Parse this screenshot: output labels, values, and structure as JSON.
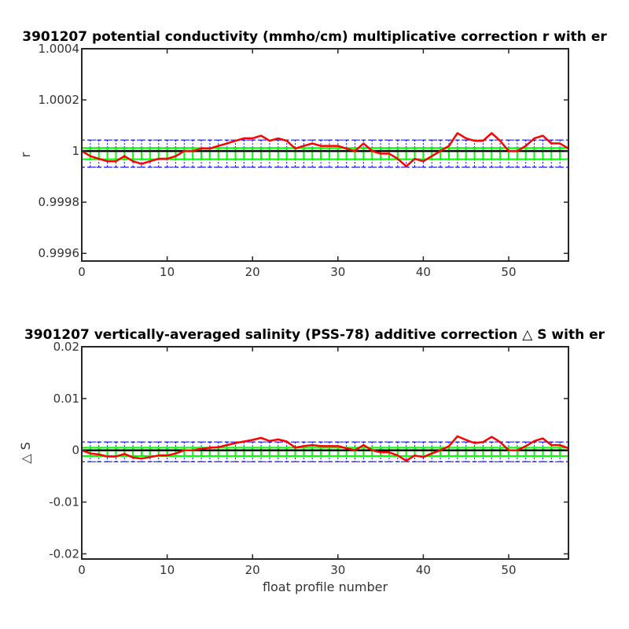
{
  "chart_data": [
    {
      "type": "line",
      "title": "3901207 potential conductivity (mmho/cm) multiplicative correction r with er",
      "xlabel": "",
      "ylabel": "r",
      "xlim": [
        0,
        57
      ],
      "ylim": [
        0.99957,
        1.0004
      ],
      "xticks": [
        0,
        10,
        20,
        30,
        40,
        50
      ],
      "xtick_labels": [
        "0",
        "10",
        "20",
        "30",
        "40",
        "50"
      ],
      "yticks": [
        0.9996,
        0.9998,
        1,
        1.0002,
        1.0004
      ],
      "ytick_labels": [
        "0.9996",
        "0.9998",
        "1",
        "1.0002",
        "1.0004"
      ],
      "grid": false,
      "x": [
        0,
        1,
        2,
        3,
        4,
        5,
        6,
        7,
        8,
        9,
        10,
        11,
        12,
        13,
        14,
        15,
        16,
        17,
        18,
        19,
        20,
        21,
        22,
        23,
        24,
        25,
        26,
        27,
        28,
        29,
        30,
        31,
        32,
        33,
        34,
        35,
        36,
        37,
        38,
        39,
        40,
        41,
        42,
        43,
        44,
        45,
        46,
        47,
        48,
        49,
        50,
        51,
        52,
        53,
        54,
        55,
        56,
        57
      ],
      "series": [
        {
          "role": "correction",
          "color": "#ff0000",
          "values": [
            1.0,
            0.99998,
            0.99997,
            0.99996,
            0.99996,
            0.99998,
            0.99996,
            0.99995,
            0.99996,
            0.99997,
            0.99997,
            0.99998,
            1.0,
            1.0,
            1.00001,
            1.00001,
            1.00002,
            1.00003,
            1.00004,
            1.00005,
            1.00005,
            1.00006,
            1.00004,
            1.00005,
            1.00004,
            1.00001,
            1.00002,
            1.00003,
            1.00002,
            1.00002,
            1.00002,
            1.00001,
            1.0,
            1.00003,
            1.0,
            0.99999,
            0.99999,
            0.99997,
            0.99994,
            0.99997,
            0.99996,
            0.99998,
            1.0,
            1.00002,
            1.00007,
            1.00005,
            1.00004,
            1.00004,
            1.00007,
            1.00004,
            1.0,
            1.0,
            1.00002,
            1.00005,
            1.00006,
            1.00003,
            1.00003,
            1.00001
          ]
        },
        {
          "role": "reference",
          "color": "#000000",
          "value": 1.0
        },
        {
          "role": "error-green",
          "color": "#00ff00",
          "center": 0.99999,
          "half_width": 2.2e-05,
          "points": 58
        },
        {
          "role": "error-blue",
          "color": "#0000ff",
          "center": 0.99999,
          "half_width": 5.3e-05,
          "points": 58
        }
      ]
    },
    {
      "type": "line",
      "title": "3901207 vertically-averaged salinity (PSS-78) additive correction △ S with er",
      "xlabel": "float profile number",
      "ylabel": "△ S",
      "xlim": [
        0,
        57
      ],
      "ylim": [
        -0.021,
        0.02
      ],
      "xticks": [
        0,
        10,
        20,
        30,
        40,
        50
      ],
      "xtick_labels": [
        "0",
        "10",
        "20",
        "30",
        "40",
        "50"
      ],
      "yticks": [
        -0.02,
        -0.01,
        0,
        0.01,
        0.02
      ],
      "ytick_labels": [
        "-0.02",
        "-0.01",
        "0",
        "0.01",
        "0.02"
      ],
      "grid": false,
      "x": [
        0,
        1,
        2,
        3,
        4,
        5,
        6,
        7,
        8,
        9,
        10,
        11,
        12,
        13,
        14,
        15,
        16,
        17,
        18,
        19,
        20,
        21,
        22,
        23,
        24,
        25,
        26,
        27,
        28,
        29,
        30,
        31,
        32,
        33,
        34,
        35,
        36,
        37,
        38,
        39,
        40,
        41,
        42,
        43,
        44,
        45,
        46,
        47,
        48,
        49,
        50,
        51,
        52,
        53,
        54,
        55,
        56,
        57
      ],
      "series": [
        {
          "role": "correction",
          "color": "#ff0000",
          "values": [
            0.0,
            -0.0006,
            -0.0008,
            -0.0012,
            -0.0012,
            -0.0007,
            -0.0014,
            -0.0016,
            -0.0013,
            -0.001,
            -0.001,
            -0.0006,
            0.0,
            0.0,
            0.0003,
            0.0005,
            0.0006,
            0.001,
            0.0014,
            0.0017,
            0.002,
            0.0024,
            0.0018,
            0.0021,
            0.0017,
            0.0005,
            0.0008,
            0.001,
            0.0008,
            0.0008,
            0.0008,
            0.0004,
            0.0,
            0.001,
            0.0,
            -0.0004,
            -0.0004,
            -0.001,
            -0.002,
            -0.001,
            -0.0013,
            -0.0006,
            0.0,
            0.0008,
            0.0027,
            0.002,
            0.0014,
            0.0016,
            0.0026,
            0.0016,
            0.0,
            0.0,
            0.0008,
            0.0018,
            0.0023,
            0.001,
            0.001,
            0.0004
          ]
        },
        {
          "role": "reference",
          "color": "#000000",
          "value": 0.0
        },
        {
          "role": "error-green",
          "color": "#00ff00",
          "center": -0.0003,
          "half_width": 0.0008,
          "points": 58
        },
        {
          "role": "error-blue",
          "color": "#0000ff",
          "center": -0.0003,
          "half_width": 0.0019,
          "points": 58
        }
      ]
    }
  ]
}
